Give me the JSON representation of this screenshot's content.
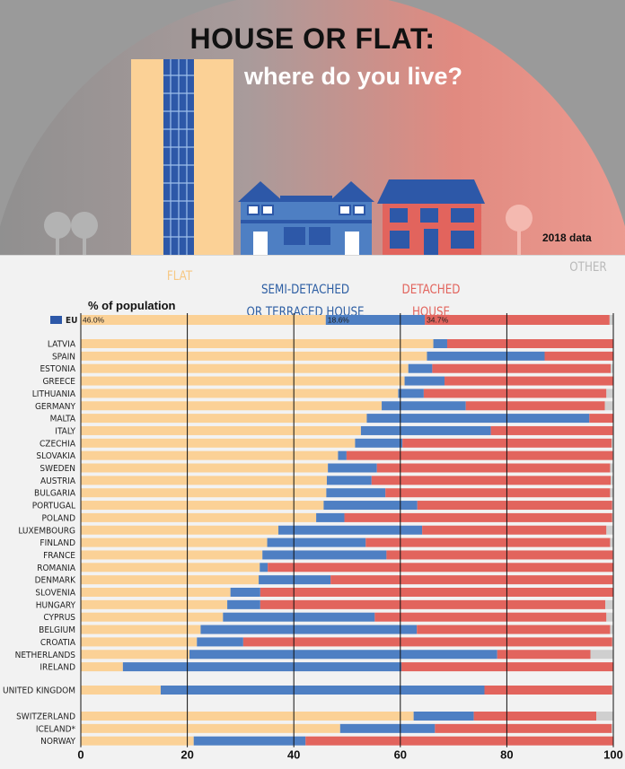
{
  "header": {
    "title": "HOUSE OR FLAT:",
    "subtitle": "where do you live?",
    "year_note": "2018 data"
  },
  "legend": {
    "flat": "FLAT",
    "semi": "SEMI-DETACHED\nOR TERRACED HOUSE",
    "detached": "DETACHED\nHOUSE",
    "other": "OTHER"
  },
  "colors": {
    "flat": "#fbd196",
    "semi": "#4e7fc3",
    "detached": "#e2645d",
    "other": "#cfcfcf"
  },
  "chart_data": {
    "type": "bar",
    "orientation": "horizontal",
    "stacked": true,
    "ylabel": "% of population",
    "xlim": [
      0,
      100
    ],
    "xticks": [
      0,
      20,
      40,
      60,
      80,
      100
    ],
    "grid": true,
    "eu": {
      "label": "EU",
      "flat": 46.0,
      "semi": 18.6,
      "detached": 34.7,
      "value_labels": [
        "46.0%",
        "18.6%",
        "34.7%"
      ]
    },
    "groups": [
      {
        "countries": [
          {
            "name": "LATVIA",
            "flat": 66.2,
            "semi": 2.6,
            "detached": 31.2
          },
          {
            "name": "SPAIN",
            "flat": 65.0,
            "semi": 22.1,
            "detached": 12.9
          },
          {
            "name": "ESTONIA",
            "flat": 61.5,
            "semi": 4.5,
            "detached": 33.5
          },
          {
            "name": "GREECE",
            "flat": 60.8,
            "semi": 7.5,
            "detached": 31.7
          },
          {
            "name": "LITHUANIA",
            "flat": 59.6,
            "semi": 4.8,
            "detached": 34.3
          },
          {
            "name": "GERMANY",
            "flat": 56.5,
            "semi": 15.8,
            "detached": 26.1
          },
          {
            "name": "MALTA",
            "flat": 53.7,
            "semi": 41.8,
            "detached": 4.5
          },
          {
            "name": "ITALY",
            "flat": 52.6,
            "semi": 24.4,
            "detached": 22.9
          },
          {
            "name": "CZECHIA",
            "flat": 51.5,
            "semi": 8.9,
            "detached": 39.3
          },
          {
            "name": "SLOVAKIA",
            "flat": 48.3,
            "semi": 1.6,
            "detached": 50.0
          },
          {
            "name": "SWEDEN",
            "flat": 46.4,
            "semi": 9.2,
            "detached": 43.8
          },
          {
            "name": "AUSTRIA",
            "flat": 46.2,
            "semi": 8.4,
            "detached": 44.9
          },
          {
            "name": "BULGARIA",
            "flat": 46.1,
            "semi": 11.1,
            "detached": 42.2
          },
          {
            "name": "PORTUGAL",
            "flat": 45.6,
            "semi": 17.6,
            "detached": 36.6
          },
          {
            "name": "POLAND",
            "flat": 44.2,
            "semi": 5.3,
            "detached": 50.3
          },
          {
            "name": "LUXEMBOURG",
            "flat": 37.1,
            "semi": 27.0,
            "detached": 34.6
          },
          {
            "name": "FINLAND",
            "flat": 35.0,
            "semi": 18.5,
            "detached": 45.9
          },
          {
            "name": "FRANCE",
            "flat": 34.1,
            "semi": 23.3,
            "detached": 42.5
          },
          {
            "name": "ROMANIA",
            "flat": 33.6,
            "semi": 1.5,
            "detached": 64.9
          },
          {
            "name": "DENMARK",
            "flat": 33.4,
            "semi": 13.5,
            "detached": 53.0
          },
          {
            "name": "SLOVENIA",
            "flat": 28.1,
            "semi": 5.6,
            "detached": 66.3
          },
          {
            "name": "HUNGARY",
            "flat": 27.5,
            "semi": 6.2,
            "detached": 64.8
          },
          {
            "name": "CYPRUS",
            "flat": 26.7,
            "semi": 28.5,
            "detached": 43.5
          },
          {
            "name": "BELGIUM",
            "flat": 22.5,
            "semi": 40.6,
            "detached": 36.3
          },
          {
            "name": "CROATIA",
            "flat": 21.8,
            "semi": 8.7,
            "detached": 69.3
          },
          {
            "name": "NETHERLANDS",
            "flat": 20.4,
            "semi": 57.8,
            "detached": 17.5
          },
          {
            "name": "IRELAND",
            "flat": 7.9,
            "semi": 52.3,
            "detached": 39.8
          }
        ]
      },
      {
        "countries": [
          {
            "name": "UNITED KINGDOM",
            "flat": 15.0,
            "semi": 60.8,
            "detached": 24.0
          }
        ]
      },
      {
        "countries": [
          {
            "name": "SWITZERLAND",
            "flat": 62.5,
            "semi": 11.3,
            "detached": 23.0
          },
          {
            "name": "ICELAND*",
            "flat": 48.7,
            "semi": 17.8,
            "detached": 33.2
          },
          {
            "name": "NORWAY",
            "flat": 21.2,
            "semi": 21.0,
            "detached": 57.8
          }
        ]
      }
    ]
  }
}
